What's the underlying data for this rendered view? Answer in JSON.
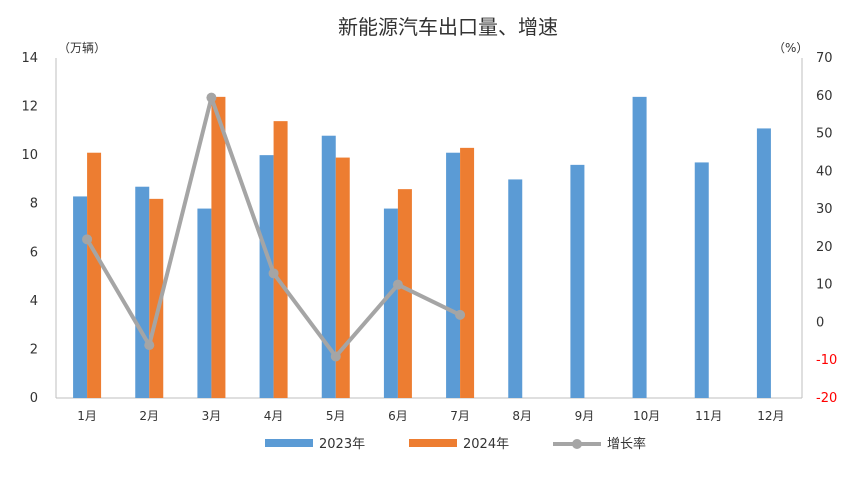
{
  "chart_data": {
    "type": "bar",
    "title": "新能源汽车出口量、增速",
    "left_unit": "（万辆）",
    "right_unit": "（%）",
    "categories": [
      "1月",
      "2月",
      "3月",
      "4月",
      "5月",
      "6月",
      "7月",
      "8月",
      "9月",
      "10月",
      "11月",
      "12月"
    ],
    "series": [
      {
        "name": "2023年",
        "type": "bar",
        "axis": "left",
        "color": "#5b9bd5",
        "values": [
          8.3,
          8.7,
          7.8,
          10.0,
          10.8,
          7.8,
          10.1,
          9.0,
          9.6,
          12.4,
          9.7,
          11.1
        ]
      },
      {
        "name": "2024年",
        "type": "bar",
        "axis": "left",
        "color": "#ed7d31",
        "values": [
          10.1,
          8.2,
          12.4,
          11.4,
          9.9,
          8.6,
          10.3,
          null,
          null,
          null,
          null,
          null
        ]
      },
      {
        "name": "增长率",
        "type": "line",
        "axis": "right",
        "color": "#a5a5a5",
        "values": [
          22,
          -6,
          59.5,
          13,
          -9,
          10,
          2,
          null,
          null,
          null,
          null,
          null
        ]
      }
    ],
    "left_axis": {
      "min": 0,
      "max": 14,
      "ticks": [
        "0",
        "2",
        "4",
        "6",
        "8",
        "10",
        "12",
        "14"
      ]
    },
    "right_axis": {
      "min": -20,
      "max": 70,
      "ticks": [
        "-20",
        "-10",
        "0",
        "10",
        "20",
        "30",
        "40",
        "50",
        "60",
        "70"
      ],
      "negative_color": "#ff0000"
    },
    "grid": false,
    "legend_position": "bottom"
  }
}
